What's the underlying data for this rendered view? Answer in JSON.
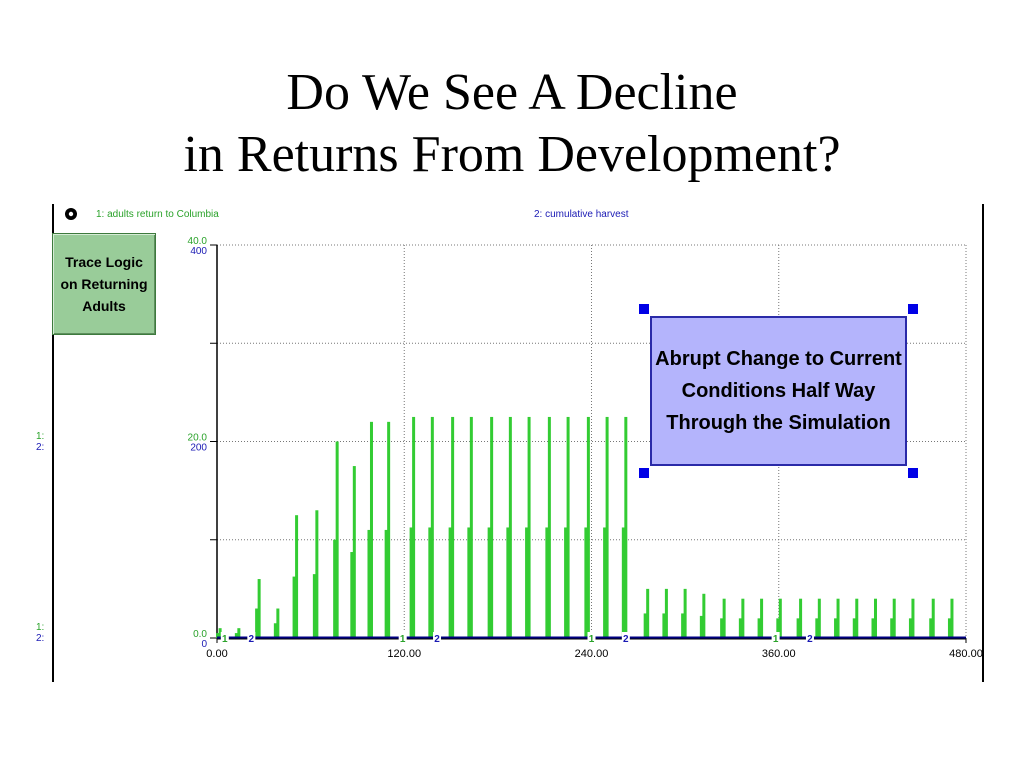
{
  "title": {
    "line1": "Do We See A Decline",
    "line2": "in Returns From Development?"
  },
  "button": {
    "label": "Trace Logic on Returning Adults"
  },
  "annotation": {
    "text": "Abrupt Change to Current Conditions Half Way Through the Simulation"
  },
  "legend": {
    "series1": "1: adults return to Columbia",
    "series2": "2: cumulative harvest"
  },
  "left_labels": {
    "mid_1": "1:",
    "mid_2": "2:",
    "bottom_1": "1:",
    "bottom_2": "2:"
  },
  "colors": {
    "series1": "#33cc33",
    "series2": "#000080",
    "annotation_fill": "#b4b4fc",
    "button_fill": "#99cc99"
  },
  "chart_data": {
    "type": "bar",
    "xlim": [
      0,
      480
    ],
    "x_ticks": [
      "0.00",
      "120.00",
      "240.00",
      "360.00",
      "480.00"
    ],
    "y1": {
      "ylim": [
        0,
        40
      ],
      "tick_labels": [
        "40.0",
        "20.0",
        "0.0"
      ]
    },
    "y2": {
      "ylim": [
        0,
        400
      ],
      "tick_labels": [
        "400",
        "200",
        "0"
      ]
    },
    "grid": true,
    "series": [
      {
        "name": "1: adults return to Columbia",
        "x": [
          2,
          14,
          27,
          39,
          51,
          64,
          77,
          88,
          99,
          110,
          126,
          138,
          151,
          163,
          176,
          188,
          200,
          213,
          225,
          238,
          250,
          262,
          276,
          288,
          300,
          312,
          325,
          337,
          349,
          361,
          374,
          386,
          398,
          410,
          422,
          434,
          446,
          459,
          471
        ],
        "values": [
          1,
          1,
          6,
          3,
          12.5,
          13,
          20,
          17.5,
          22,
          22,
          22.5,
          22.5,
          22.5,
          22.5,
          22.5,
          22.5,
          22.5,
          22.5,
          22.5,
          22.5,
          22.5,
          22.5,
          5,
          5,
          5,
          4.5,
          4,
          4,
          4,
          4,
          4,
          4,
          4,
          4,
          4,
          4,
          4,
          4,
          4
        ]
      },
      {
        "name": "2: cumulative harvest",
        "x": [
          0,
          480
        ],
        "values": [
          0,
          0
        ],
        "marker_label": "2"
      }
    ]
  }
}
